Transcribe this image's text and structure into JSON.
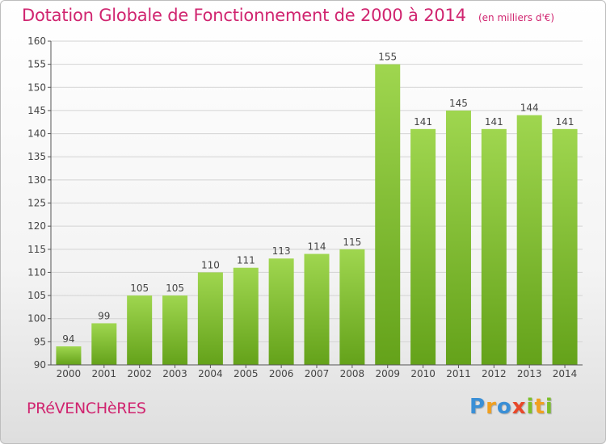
{
  "title": "Dotation Globale de Fonctionnement de 2000 à 2014",
  "subtitle": "(en milliers d'€)",
  "town": "PRéVENCHèRES",
  "logo": {
    "text": "Proxiti",
    "letters": [
      {
        "char": "P",
        "color": "#3a8fd6"
      },
      {
        "char": "r",
        "color": "#f0a020"
      },
      {
        "char": "o",
        "color": "#3a8fd6"
      },
      {
        "char": "x",
        "color": "#e8482a"
      },
      {
        "char": "i",
        "color": "#7cbf2a"
      },
      {
        "char": "t",
        "color": "#f0a020"
      },
      {
        "char": "i",
        "color": "#7cbf2a"
      }
    ]
  },
  "colors": {
    "title": "#d0246f",
    "bar_light": "#9fd64f",
    "bar_dark": "#64a21a",
    "grid": "#d3d3d3",
    "axis": "#555555"
  },
  "chart_data": {
    "type": "bar",
    "categories": [
      "2000",
      "2001",
      "2002",
      "2003",
      "2004",
      "2005",
      "2006",
      "2007",
      "2008",
      "2009",
      "2010",
      "2011",
      "2012",
      "2013",
      "2014"
    ],
    "values": [
      94,
      99,
      105,
      105,
      110,
      111,
      113,
      114,
      115,
      155,
      141,
      145,
      141,
      144,
      141
    ],
    "ylim": [
      90,
      160
    ],
    "yticks": [
      90,
      95,
      100,
      105,
      110,
      115,
      120,
      125,
      130,
      135,
      140,
      145,
      150,
      155,
      160
    ],
    "grid": true,
    "data_labels": true
  }
}
